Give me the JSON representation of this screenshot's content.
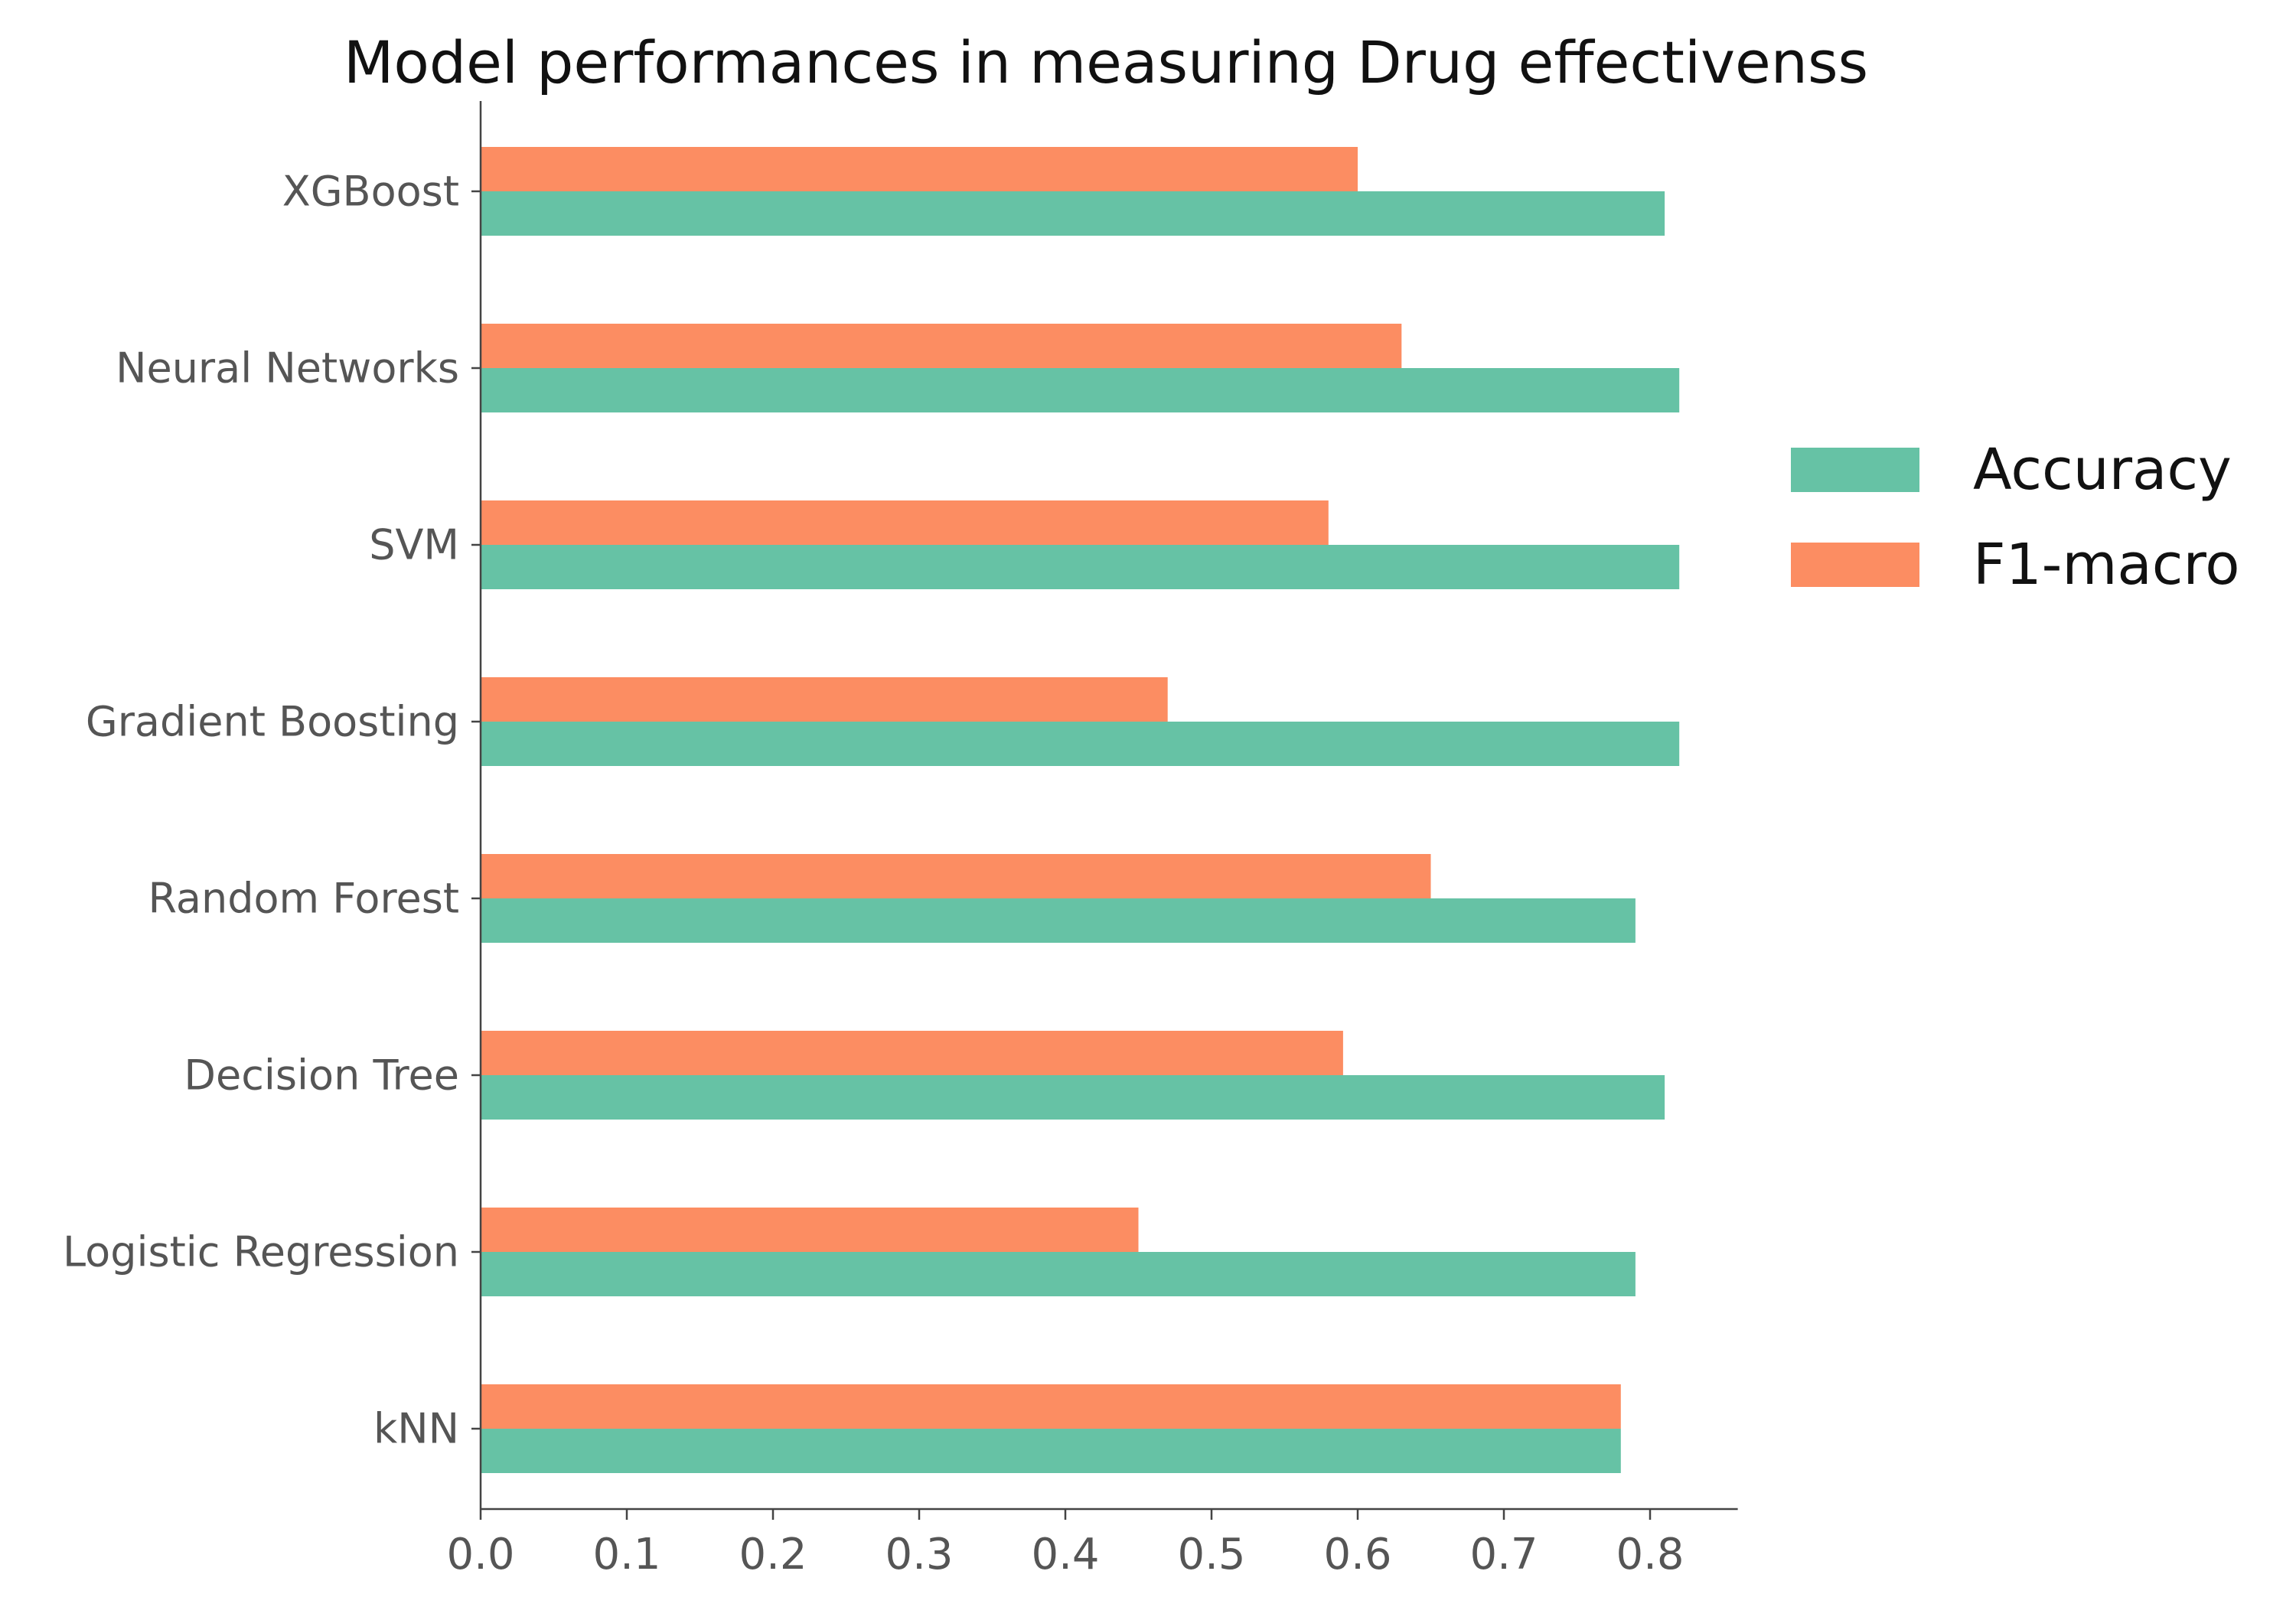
{
  "chart_data": {
    "type": "bar",
    "orientation": "horizontal",
    "title": "Model performances in measuring Drug effectivenss",
    "xlabel": "",
    "ylabel": "",
    "categories": [
      "XGBoost",
      "Neural Networks",
      "SVM",
      "Gradient Boosting",
      "Random Forest",
      "Decision Tree",
      "Logistic Regression",
      "kNN"
    ],
    "series": [
      {
        "name": "Accuracy",
        "color": "#66c2a5",
        "values": [
          0.81,
          0.82,
          0.82,
          0.82,
          0.79,
          0.81,
          0.79,
          0.78
        ]
      },
      {
        "name": "F1-macro",
        "color": "#fc8d62",
        "values": [
          0.6,
          0.63,
          0.58,
          0.47,
          0.65,
          0.59,
          0.45,
          0.78
        ]
      }
    ],
    "xlim": [
      0,
      0.86
    ],
    "xticks": [
      "0.0",
      "0.1",
      "0.2",
      "0.3",
      "0.4",
      "0.5",
      "0.6",
      "0.7",
      "0.8"
    ],
    "grid": false,
    "legend_position": "right"
  }
}
